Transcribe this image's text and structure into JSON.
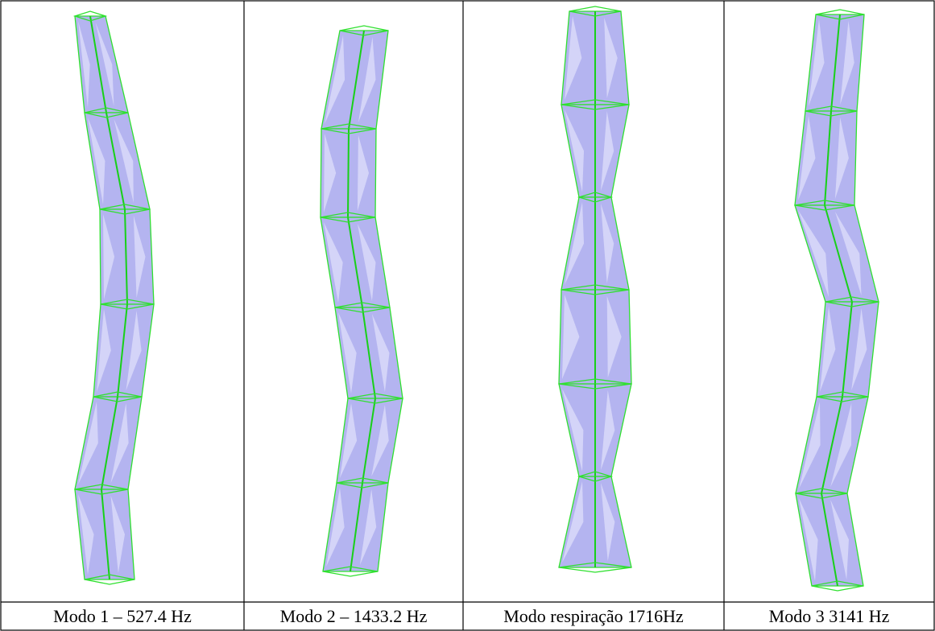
{
  "figures": [
    {
      "caption": "Modo 1 – 527.4 Hz"
    },
    {
      "caption": "Modo 2 – 1433.2 Hz"
    },
    {
      "caption": "Modo respiração 1716Hz"
    },
    {
      "caption": "Modo 3 3141 Hz"
    }
  ]
}
